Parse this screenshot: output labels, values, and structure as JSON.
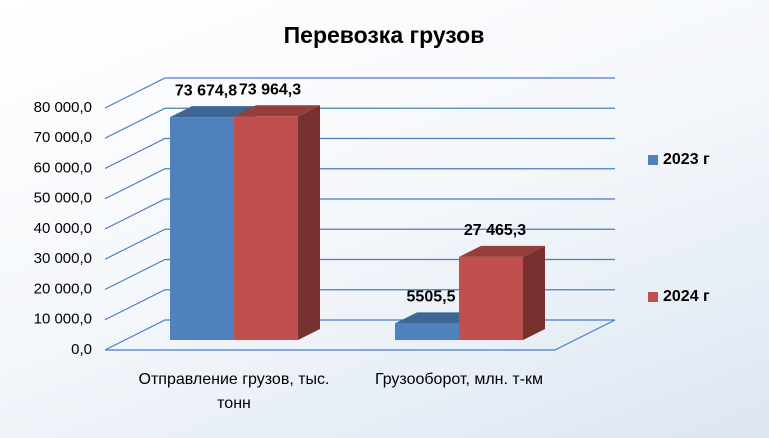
{
  "chart_data": {
    "type": "bar3d",
    "title": "Перевозка грузов",
    "categories": [
      "Отправление грузов, тыс. тонн",
      "Грузооборот, млн. т-км"
    ],
    "series": [
      {
        "name": "2023 г",
        "color": "#4f81bd",
        "values": [
          73674.8,
          5505.5
        ],
        "value_labels": [
          "73 674,8",
          "5505,5"
        ]
      },
      {
        "name": "2024 г",
        "color": "#c0504d",
        "values": [
          73964.3,
          27465.3
        ],
        "value_labels": [
          "73 964,3",
          "27 465,3"
        ]
      }
    ],
    "ylim": [
      0,
      80000
    ],
    "yticks": [
      {
        "value": 0,
        "label": "0,0"
      },
      {
        "value": 10000,
        "label": "10 000,0"
      },
      {
        "value": 20000,
        "label": "20 000,0"
      },
      {
        "value": 30000,
        "label": "30 000,0"
      },
      {
        "value": 40000,
        "label": "40 000,0"
      },
      {
        "value": 50000,
        "label": "50 000,0"
      },
      {
        "value": 60000,
        "label": "60 000,0"
      },
      {
        "value": 70000,
        "label": "70 000,0"
      },
      {
        "value": 80000,
        "label": "80 000,0"
      }
    ],
    "grid": true,
    "legend": "right"
  }
}
